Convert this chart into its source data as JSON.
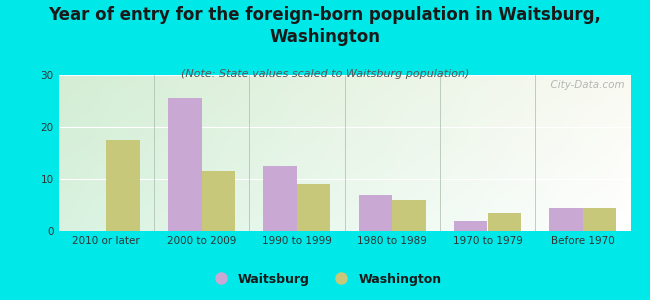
{
  "title": "Year of entry for the foreign-born population in Waitsburg,\nWashington",
  "subtitle": "(Note: State values scaled to Waitsburg population)",
  "categories": [
    "2010 or later",
    "2000 to 2009",
    "1990 to 1999",
    "1980 to 1989",
    "1970 to 1979",
    "Before 1970"
  ],
  "waitsburg_values": [
    0,
    25.5,
    12.5,
    7.0,
    2.0,
    4.5
  ],
  "washington_values": [
    17.5,
    11.5,
    9.0,
    6.0,
    3.5,
    4.5
  ],
  "waitsburg_color": "#c9a8d4",
  "washington_color": "#c8c87a",
  "background_color": "#00e8e8",
  "ylim": [
    0,
    30
  ],
  "yticks": [
    0,
    10,
    20,
    30
  ],
  "bar_width": 0.35,
  "title_fontsize": 12,
  "subtitle_fontsize": 8,
  "legend_fontsize": 9,
  "tick_fontsize": 7.5,
  "watermark": "  City-Data.com"
}
